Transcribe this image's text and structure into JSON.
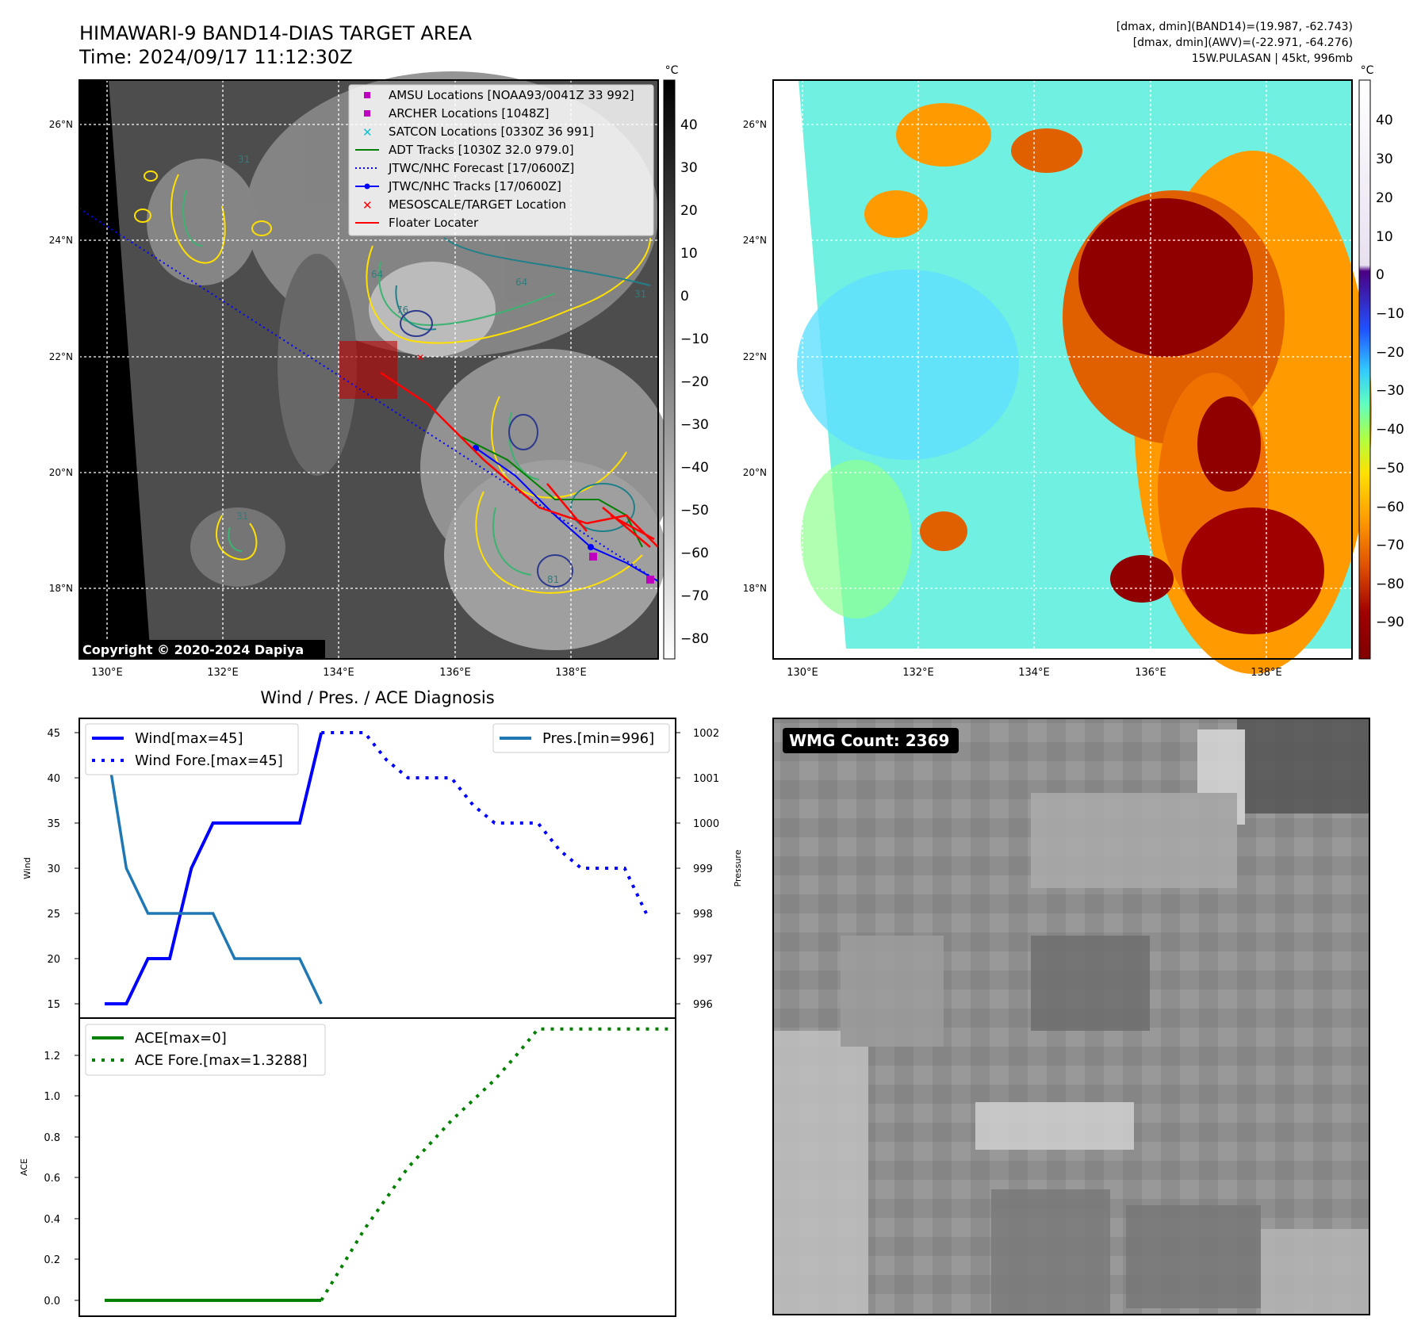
{
  "header": {
    "title_line1": "HIMAWARI-9 BAND14-DIAS TARGET AREA",
    "title_line2": "Time: 2024/09/17 11:12:30Z",
    "stats_line1": "[dmax, dmin](BAND14)=(19.987, -62.743)",
    "stats_line2": "[dmax, dmin](AWV)=(-22.971, -64.276)",
    "stats_line3": "15W.PULASAN | 45kt, 996mb"
  },
  "map_left": {
    "lat_labels": [
      "26°N",
      "24°N",
      "22°N",
      "20°N",
      "18°N"
    ],
    "lon_labels": [
      "130°E",
      "132°E",
      "134°E",
      "136°E",
      "138°E"
    ],
    "copyright": "Copyright © 2020-2024 Dapiya",
    "contour_labels": [
      "31",
      "64",
      "76",
      "81",
      "31",
      "64",
      "31"
    ],
    "legend": [
      {
        "label": "AMSU Locations [NOAA93/0041Z 33 992]",
        "color": "#bf00bf",
        "marker": "square"
      },
      {
        "label": "ARCHER Locations [1048Z]",
        "color": "#bf00bf",
        "marker": "square"
      },
      {
        "label": "SATCON Locations [0330Z 36 991]",
        "color": "#17becf",
        "marker": "x"
      },
      {
        "label": "ADT Tracks [1030Z 32.0 979.0]",
        "color": "#008000",
        "marker": "line"
      },
      {
        "label": "JTWC/NHC Forecast [17/0600Z]",
        "color": "#0000ff",
        "marker": "dotted"
      },
      {
        "label": "JTWC/NHC Tracks [17/0600Z]",
        "color": "#0000ff",
        "marker": "line-dot"
      },
      {
        "label": "MESOSCALE/TARGET Location",
        "color": "#ff0000",
        "marker": "x"
      },
      {
        "label": "Floater Locater",
        "color": "#ff0000",
        "marker": "line"
      }
    ],
    "colorbar": {
      "unit": "°C",
      "ticks": [
        "40",
        "30",
        "20",
        "10",
        "0",
        "−10",
        "−20",
        "−30",
        "−40",
        "−50",
        "−60",
        "−70",
        "−80"
      ]
    }
  },
  "map_right": {
    "lat_labels": [
      "26°N",
      "24°N",
      "22°N",
      "20°N",
      "18°N"
    ],
    "lon_labels": [
      "130°E",
      "132°E",
      "134°E",
      "136°E",
      "138°E"
    ],
    "colorbar": {
      "unit": "°C",
      "ticks": [
        "40",
        "30",
        "20",
        "10",
        "0",
        "−10",
        "−20",
        "−30",
        "−40",
        "−50",
        "−60",
        "−70",
        "−80",
        "−90"
      ]
    }
  },
  "diag": {
    "title": "Wind / Pres. / ACE Diagnosis",
    "wind_ylabel": "Wind",
    "pres_ylabel": "Pressure",
    "ace_ylabel": "ACE",
    "wind_ticks": [
      "45",
      "40",
      "35",
      "30",
      "25",
      "20",
      "15"
    ],
    "pres_ticks": [
      "1002",
      "1001",
      "1000",
      "999",
      "998",
      "997",
      "996"
    ],
    "ace_ticks": [
      "1.2",
      "1.0",
      "0.8",
      "0.6",
      "0.4",
      "0.2",
      "0.0"
    ],
    "legend_wind": "Wind[max=45]",
    "legend_wind_fore": "Wind Fore.[max=45]",
    "legend_pres": "Pres.[min=996]",
    "legend_ace": "ACE[max=0]",
    "legend_ace_fore": "ACE Fore.[max=1.3288]"
  },
  "wmg": {
    "label": "WMG Count: 2369"
  },
  "chart_data": [
    {
      "type": "line",
      "title": "Wind / Pres. / ACE Diagnosis",
      "xlabel": "",
      "ylabel": "Wind",
      "ylim": [
        15,
        45
      ],
      "series": [
        {
          "name": "Wind[max=45]",
          "x": [
            0,
            1,
            2,
            3,
            4,
            5,
            6,
            7,
            8,
            9,
            10
          ],
          "values": [
            15,
            15,
            20,
            20,
            30,
            35,
            35,
            35,
            35,
            35,
            45
          ]
        },
        {
          "name": "Wind Fore.[max=45]",
          "x": [
            10,
            11,
            12,
            13,
            14,
            15,
            16,
            17,
            18,
            19,
            20,
            21,
            22,
            23,
            24,
            25
          ],
          "values": [
            45,
            45,
            45,
            42,
            40,
            40,
            40,
            37,
            35,
            35,
            35,
            32,
            30,
            30,
            30,
            25
          ]
        }
      ]
    },
    {
      "type": "line",
      "ylabel": "Pressure",
      "ylim": [
        996,
        1002
      ],
      "series": [
        {
          "name": "Pres.[min=996]",
          "x": [
            0,
            1,
            2,
            3,
            4,
            5,
            6,
            7,
            8,
            9,
            10
          ],
          "values": [
            1002,
            999,
            998,
            998,
            998,
            998,
            997,
            997,
            997,
            997,
            996
          ]
        }
      ]
    },
    {
      "type": "line",
      "ylabel": "ACE",
      "ylim": [
        0,
        1.3288
      ],
      "series": [
        {
          "name": "ACE[max=0]",
          "x": [
            0,
            10
          ],
          "values": [
            0,
            0
          ]
        },
        {
          "name": "ACE Fore.[max=1.3288]",
          "x": [
            10,
            12,
            14,
            16,
            18,
            19,
            20,
            22,
            24,
            26
          ],
          "values": [
            0,
            0.35,
            0.65,
            0.88,
            1.08,
            1.2,
            1.3288,
            1.3288,
            1.3288,
            1.3288
          ]
        }
      ]
    }
  ]
}
